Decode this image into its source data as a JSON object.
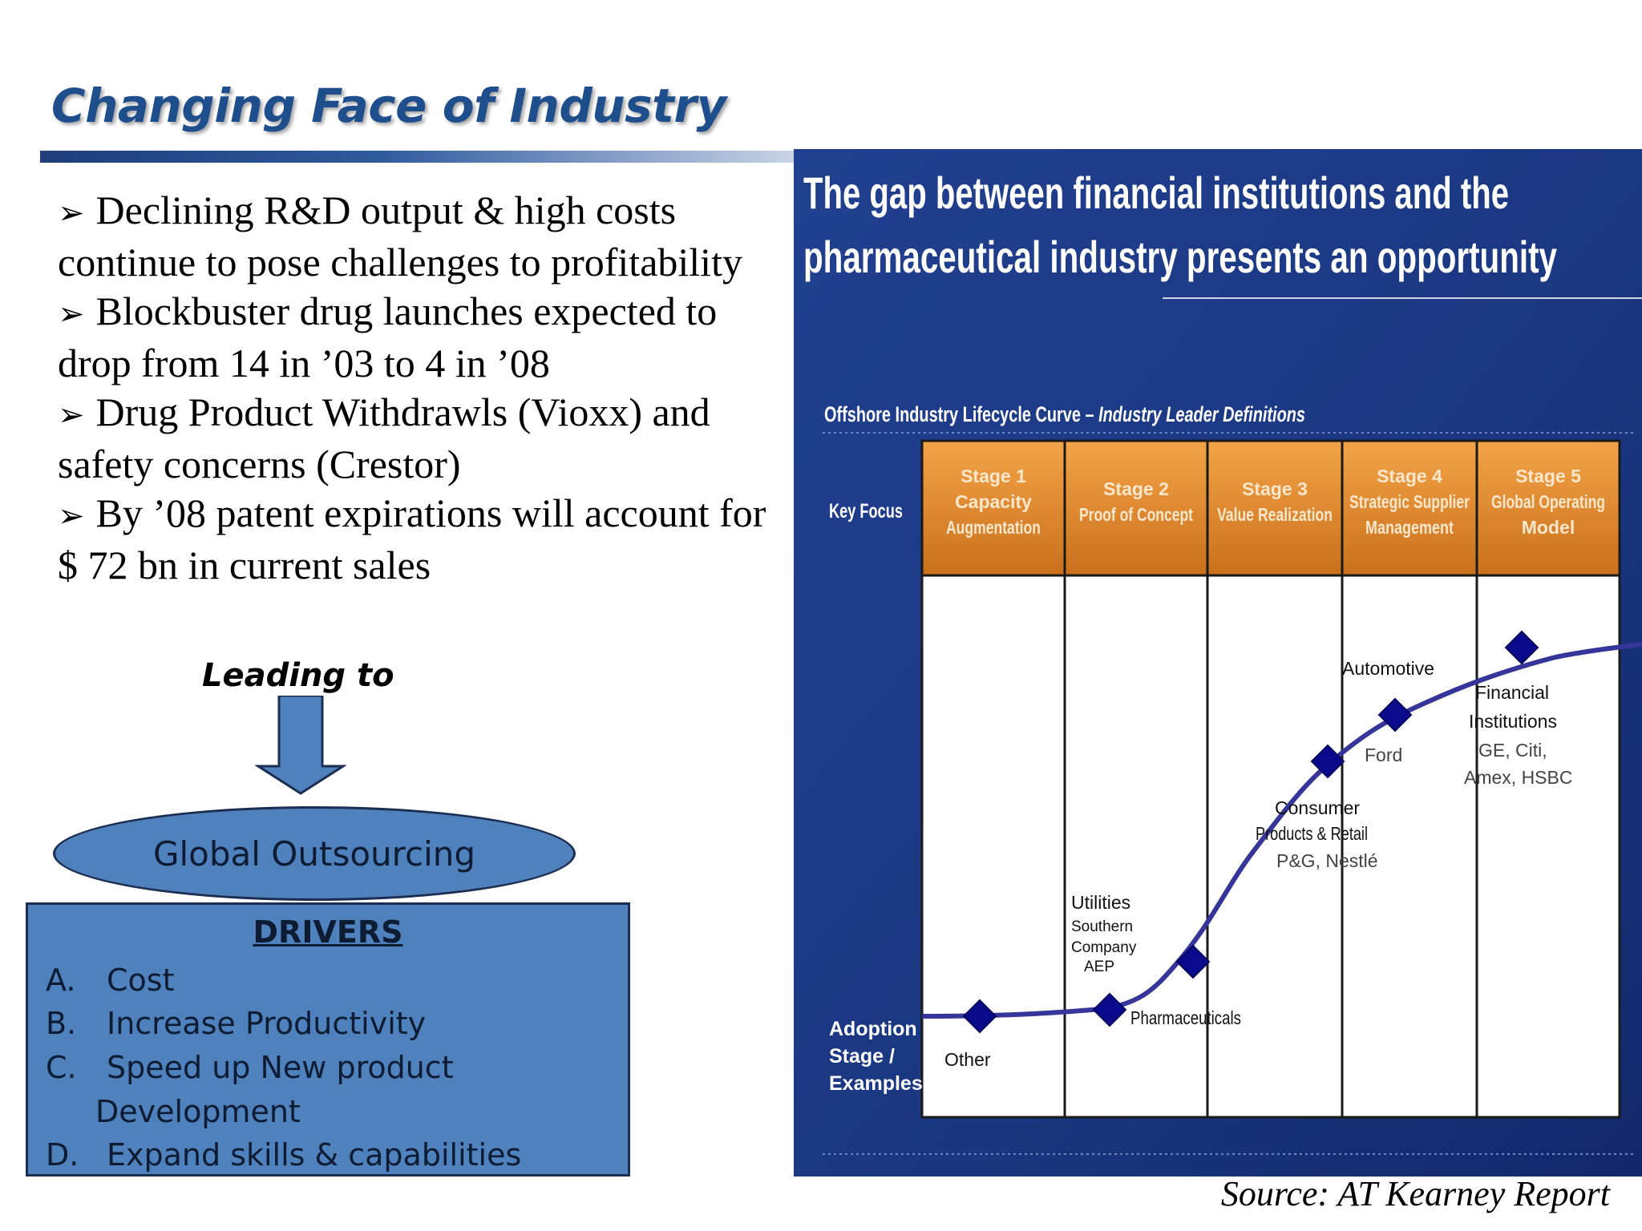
{
  "title": "Changing Face of Industry",
  "bullets": [
    {
      "marker": "➢",
      "text": "Declining R&D output & high costs continue to pose challenges to profitability"
    },
    {
      "marker": "➢",
      "text": "Blockbuster drug launches expected to drop from 14 in ’03 to 4 in ’08"
    },
    {
      "marker": "➢",
      "text": "Drug Product Withdrawls (Vioxx) and safety concerns (Crestor)"
    },
    {
      "marker": "➢",
      "text": "By ’08 patent expirations will account for $ 72 bn in current sales"
    }
  ],
  "leading_to": "Leading to",
  "outsourcing": "Global Outsourcing",
  "drivers": {
    "title": "DRIVERS",
    "items": [
      {
        "letter": "A.",
        "text": "Cost"
      },
      {
        "letter": "B.",
        "text": "Increase Productivity"
      },
      {
        "letter": "C.",
        "text": "Speed up New product"
      },
      {
        "letter": "D.",
        "text": "Expand skills & capabilities"
      }
    ],
    "continuation": "Development"
  },
  "panel": {
    "headline_line1": "The gap between financial institutions and the",
    "headline_line2": "pharmaceutical industry presents an opportunity",
    "curve_title_plain": "Offshore Industry Lifecycle Curve – ",
    "curve_title_italic": "Industry Leader Definitions",
    "row_key_focus": "Key Focus",
    "row_adoption": [
      "Adoption",
      "Stage /",
      "Examples"
    ],
    "stages": [
      {
        "lines": [
          "Stage 1",
          "Capacity",
          "Augmentation"
        ]
      },
      {
        "lines": [
          "Stage 2",
          "Proof of Concept"
        ]
      },
      {
        "lines": [
          "Stage 3",
          "Value Realization"
        ]
      },
      {
        "lines": [
          "Stage 4",
          "Strategic Supplier",
          "Management"
        ]
      },
      {
        "lines": [
          "Stage 5",
          "Global Operating",
          "Model"
        ]
      }
    ],
    "labels": {
      "other": "Other",
      "utilities": [
        "Utilities",
        "Southern",
        "Company",
        "AEP"
      ],
      "pharma": "Pharmaceuticals",
      "consumer": [
        "Consumer",
        "Products & Retail",
        "P&G, Nestlé"
      ],
      "automotive": "Automotive",
      "ford": "Ford",
      "financial": [
        "Financial",
        "Institutions",
        "GE, Citi,",
        "Amex, HSBC"
      ]
    },
    "colors": {
      "panel_bg": "#1c3b86",
      "header_orange": "#e8892b",
      "curve": "#3a3a9a",
      "marker": "#0a0a8c"
    }
  },
  "source": "Source: AT Kearney Report"
}
